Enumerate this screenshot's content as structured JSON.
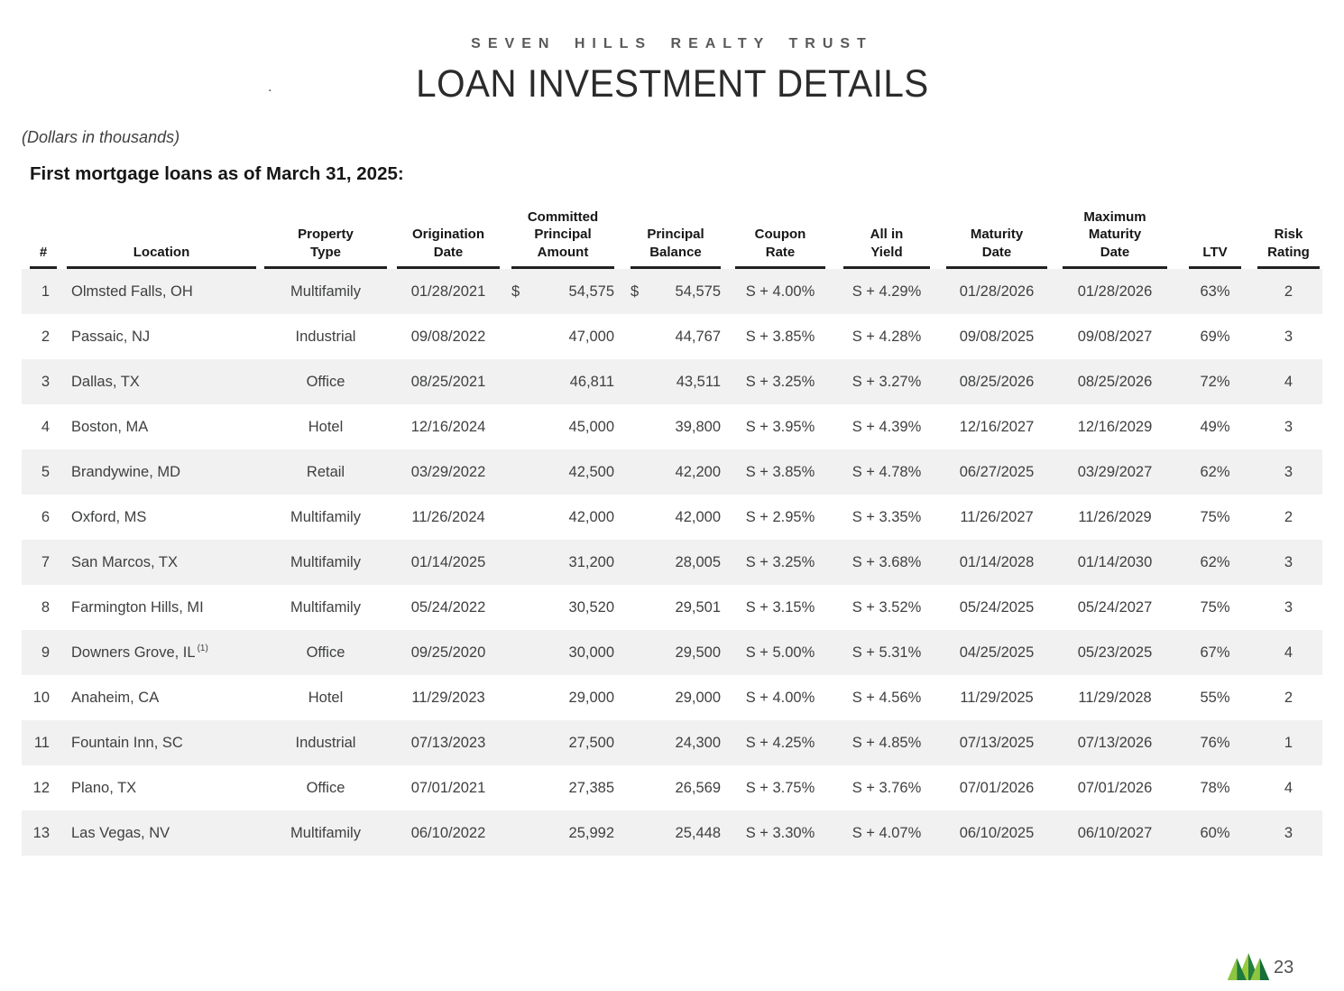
{
  "header": {
    "company": "SEVEN HILLS REALTY TRUST",
    "title": "LOAN INVESTMENT DETAILS",
    "stray_mark": "."
  },
  "subtitle": "(Dollars in thousands)",
  "section_heading": "First mortgage loans as of March 31, 2025:",
  "table": {
    "columns": [
      {
        "key": "num",
        "label": "#"
      },
      {
        "key": "location",
        "label": "Location"
      },
      {
        "key": "type",
        "label": "Property\nType"
      },
      {
        "key": "orig",
        "label": "Origination\nDate"
      },
      {
        "key": "committed",
        "label": "Committed\nPrincipal\nAmount"
      },
      {
        "key": "balance",
        "label": "Principal\nBalance"
      },
      {
        "key": "coupon",
        "label": "Coupon\nRate"
      },
      {
        "key": "yield",
        "label": "All in\nYield"
      },
      {
        "key": "maturity",
        "label": "Maturity\nDate"
      },
      {
        "key": "maxmat",
        "label": "Maximum\nMaturity\nDate"
      },
      {
        "key": "ltv",
        "label": "LTV"
      },
      {
        "key": "risk",
        "label": "Risk\nRating"
      }
    ],
    "rows": [
      {
        "num": "1",
        "location": "Olmsted Falls, OH",
        "type": "Multifamily",
        "orig": "01/28/2021",
        "committed_dollar": "$",
        "committed": "54,575",
        "balance_dollar": "$",
        "balance": "54,575",
        "coupon": "S + 4.00%",
        "yield": "S + 4.29%",
        "maturity": "01/28/2026",
        "maxmat": "01/28/2026",
        "ltv": "63%",
        "risk": "2"
      },
      {
        "num": "2",
        "location": "Passaic, NJ",
        "type": "Industrial",
        "orig": "09/08/2022",
        "committed_dollar": "",
        "committed": "47,000",
        "balance_dollar": "",
        "balance": "44,767",
        "coupon": "S + 3.85%",
        "yield": "S + 4.28%",
        "maturity": "09/08/2025",
        "maxmat": "09/08/2027",
        "ltv": "69%",
        "risk": "3"
      },
      {
        "num": "3",
        "location": "Dallas, TX",
        "type": "Office",
        "orig": "08/25/2021",
        "committed_dollar": "",
        "committed": "46,811",
        "balance_dollar": "",
        "balance": "43,511",
        "coupon": "S + 3.25%",
        "yield": "S + 3.27%",
        "maturity": "08/25/2026",
        "maxmat": "08/25/2026",
        "ltv": "72%",
        "risk": "4"
      },
      {
        "num": "4",
        "location": "Boston, MA",
        "type": "Hotel",
        "orig": "12/16/2024",
        "committed_dollar": "",
        "committed": "45,000",
        "balance_dollar": "",
        "balance": "39,800",
        "coupon": "S + 3.95%",
        "yield": "S + 4.39%",
        "maturity": "12/16/2027",
        "maxmat": "12/16/2029",
        "ltv": "49%",
        "risk": "3"
      },
      {
        "num": "5",
        "location": "Brandywine, MD",
        "type": "Retail",
        "orig": "03/29/2022",
        "committed_dollar": "",
        "committed": "42,500",
        "balance_dollar": "",
        "balance": "42,200",
        "coupon": "S + 3.85%",
        "yield": "S + 4.78%",
        "maturity": "06/27/2025",
        "maxmat": "03/29/2027",
        "ltv": "62%",
        "risk": "3"
      },
      {
        "num": "6",
        "location": "Oxford, MS",
        "type": "Multifamily",
        "orig": "11/26/2024",
        "committed_dollar": "",
        "committed": "42,000",
        "balance_dollar": "",
        "balance": "42,000",
        "coupon": "S + 2.95%",
        "yield": "S + 3.35%",
        "maturity": "11/26/2027",
        "maxmat": "11/26/2029",
        "ltv": "75%",
        "risk": "2"
      },
      {
        "num": "7",
        "location": "San Marcos, TX",
        "type": "Multifamily",
        "orig": "01/14/2025",
        "committed_dollar": "",
        "committed": "31,200",
        "balance_dollar": "",
        "balance": "28,005",
        "coupon": "S + 3.25%",
        "yield": "S + 3.68%",
        "maturity": "01/14/2028",
        "maxmat": "01/14/2030",
        "ltv": "62%",
        "risk": "3"
      },
      {
        "num": "8",
        "location": "Farmington Hills, MI",
        "type": "Multifamily",
        "orig": "05/24/2022",
        "committed_dollar": "",
        "committed": "30,520",
        "balance_dollar": "",
        "balance": "29,501",
        "coupon": "S + 3.15%",
        "yield": "S + 3.52%",
        "maturity": "05/24/2025",
        "maxmat": "05/24/2027",
        "ltv": "75%",
        "risk": "3"
      },
      {
        "num": "9",
        "location": "Downers Grove, IL",
        "location_note": "(1)",
        "type": "Office",
        "orig": "09/25/2020",
        "committed_dollar": "",
        "committed": "30,000",
        "balance_dollar": "",
        "balance": "29,500",
        "coupon": "S + 5.00%",
        "yield": "S + 5.31%",
        "maturity": "04/25/2025",
        "maxmat": "05/23/2025",
        "ltv": "67%",
        "risk": "4"
      },
      {
        "num": "10",
        "location": "Anaheim, CA",
        "type": "Hotel",
        "orig": "11/29/2023",
        "committed_dollar": "",
        "committed": "29,000",
        "balance_dollar": "",
        "balance": "29,000",
        "coupon": "S + 4.00%",
        "yield": "S + 4.56%",
        "maturity": "11/29/2025",
        "maxmat": "11/29/2028",
        "ltv": "55%",
        "risk": "2"
      },
      {
        "num": "11",
        "location": "Fountain Inn, SC",
        "type": "Industrial",
        "orig": "07/13/2023",
        "committed_dollar": "",
        "committed": "27,500",
        "balance_dollar": "",
        "balance": "24,300",
        "coupon": "S + 4.25%",
        "yield": "S + 4.85%",
        "maturity": "07/13/2025",
        "maxmat": "07/13/2026",
        "ltv": "76%",
        "risk": "1"
      },
      {
        "num": "12",
        "location": "Plano, TX",
        "type": "Office",
        "orig": "07/01/2021",
        "committed_dollar": "",
        "committed": "27,385",
        "balance_dollar": "",
        "balance": "26,569",
        "coupon": "S + 3.75%",
        "yield": "S + 3.76%",
        "maturity": "07/01/2026",
        "maxmat": "07/01/2026",
        "ltv": "78%",
        "risk": "4"
      },
      {
        "num": "13",
        "location": "Las Vegas, NV",
        "type": "Multifamily",
        "orig": "06/10/2022",
        "committed_dollar": "",
        "committed": "25,992",
        "balance_dollar": "",
        "balance": "25,448",
        "coupon": "S + 3.30%",
        "yield": "S + 4.07%",
        "maturity": "06/10/2025",
        "maxmat": "06/10/2027",
        "ltv": "60%",
        "risk": "3"
      }
    ]
  },
  "footer": {
    "page_number": "23",
    "logo": {
      "name": "seven-hills-mountains-logo",
      "colors": {
        "light_green": "#8dc63f",
        "mid_green": "#9aca3c",
        "dark_green": "#1e7a3d",
        "darker_green": "#156f38",
        "mid_dark_green": "#237f3f"
      }
    }
  }
}
